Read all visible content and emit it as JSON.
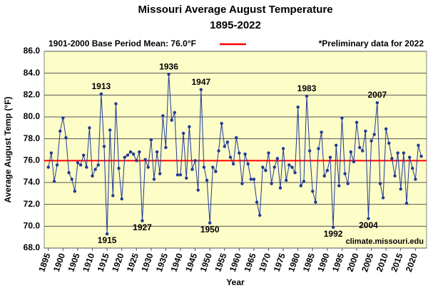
{
  "chart_data": {
    "type": "line",
    "title": "Missouri Average August Temperature",
    "subtitle": "1895-2022",
    "x_label": "Year",
    "y_label": "Average August Temp (°F)",
    "note": "*Preliminary data for 2022",
    "source": "climate.missouri.edu",
    "reference_line": {
      "label": "1901-2000 Base Period Mean: 76.0°F",
      "value": 76.0,
      "color": "#ff0000"
    },
    "x": [
      1895,
      1896,
      1897,
      1898,
      1899,
      1900,
      1901,
      1902,
      1903,
      1904,
      1905,
      1906,
      1907,
      1908,
      1909,
      1910,
      1911,
      1912,
      1913,
      1914,
      1915,
      1916,
      1917,
      1918,
      1919,
      1920,
      1921,
      1922,
      1923,
      1924,
      1925,
      1926,
      1927,
      1928,
      1929,
      1930,
      1931,
      1932,
      1933,
      1934,
      1935,
      1936,
      1937,
      1938,
      1939,
      1940,
      1941,
      1942,
      1943,
      1944,
      1945,
      1946,
      1947,
      1948,
      1949,
      1950,
      1951,
      1952,
      1953,
      1954,
      1955,
      1956,
      1957,
      1958,
      1959,
      1960,
      1961,
      1962,
      1963,
      1964,
      1965,
      1966,
      1967,
      1968,
      1969,
      1970,
      1971,
      1972,
      1973,
      1974,
      1975,
      1976,
      1977,
      1978,
      1979,
      1980,
      1981,
      1982,
      1983,
      1984,
      1985,
      1986,
      1987,
      1988,
      1989,
      1990,
      1991,
      1992,
      1993,
      1994,
      1995,
      1996,
      1997,
      1998,
      1999,
      2000,
      2001,
      2002,
      2003,
      2004,
      2005,
      2006,
      2007,
      2008,
      2009,
      2010,
      2011,
      2012,
      2013,
      2014,
      2015,
      2016,
      2017,
      2018,
      2019,
      2020,
      2021,
      2022
    ],
    "series": [
      {
        "name": "August temperature",
        "color": "#1f3a93",
        "values": [
          75.4,
          76.7,
          74.1,
          75.6,
          78.7,
          79.9,
          78.1,
          74.9,
          74.3,
          73.2,
          75.8,
          75.6,
          76.5,
          75.4,
          79.0,
          74.6,
          75.2,
          75.6,
          82.1,
          77.3,
          69.3,
          78.8,
          72.8,
          81.2,
          75.3,
          72.5,
          76.3,
          76.5,
          76.8,
          76.6,
          76.0,
          76.8,
          70.5,
          76.1,
          75.4,
          77.9,
          74.3,
          76.8,
          74.8,
          80.1,
          77.2,
          83.9,
          79.7,
          80.4,
          74.7,
          74.7,
          78.5,
          74.4,
          79.1,
          75.2,
          76.0,
          73.3,
          82.5,
          75.4,
          74.2,
          70.3,
          75.4,
          75.0,
          76.9,
          79.4,
          77.3,
          77.7,
          76.3,
          75.7,
          78.1,
          76.7,
          73.9,
          76.6,
          75.7,
          74.3,
          74.3,
          72.2,
          71.0,
          75.4,
          75.1,
          76.7,
          73.9,
          75.4,
          76.2,
          73.5,
          77.1,
          74.2,
          75.6,
          75.4,
          74.9,
          80.9,
          73.7,
          74.1,
          81.9,
          76.9,
          73.2,
          72.2,
          77.1,
          78.6,
          74.6,
          75.1,
          76.3,
          69.9,
          77.4,
          73.7,
          79.9,
          74.8,
          73.9,
          76.8,
          75.9,
          79.5,
          77.2,
          76.9,
          78.7,
          70.7,
          77.8,
          78.4,
          81.3,
          73.9,
          72.6,
          78.9,
          77.6,
          76.2,
          74.6,
          76.7,
          73.4,
          76.7,
          72.1,
          76.3,
          75.3,
          74.3,
          77.4,
          76.4
        ]
      }
    ],
    "annotations": [
      {
        "text": "1913",
        "x": 1913,
        "position": "above"
      },
      {
        "text": "1915",
        "x": 1915,
        "position": "below"
      },
      {
        "text": "1927",
        "x": 1927,
        "position": "below"
      },
      {
        "text": "1936",
        "x": 1936,
        "position": "above"
      },
      {
        "text": "1947",
        "x": 1947,
        "position": "above"
      },
      {
        "text": "1950",
        "x": 1950,
        "position": "below"
      },
      {
        "text": "1983",
        "x": 1983,
        "position": "above"
      },
      {
        "text": "1992",
        "x": 1992,
        "position": "below"
      },
      {
        "text": "2004",
        "x": 2004,
        "position": "below"
      },
      {
        "text": "2007",
        "x": 2007,
        "position": "above"
      }
    ],
    "xlim": [
      1893.6,
      2023.8
    ],
    "xticks": [
      1895,
      1900,
      1905,
      1910,
      1915,
      1920,
      1925,
      1930,
      1935,
      1940,
      1945,
      1950,
      1955,
      1960,
      1965,
      1970,
      1975,
      1980,
      1985,
      1990,
      1995,
      2000,
      2005,
      2010,
      2015,
      2020
    ],
    "ylim": [
      68,
      86
    ],
    "yticks": [
      {
        "value": 68,
        "label": "68.0"
      },
      {
        "value": 70,
        "label": "70.0"
      },
      {
        "value": 72,
        "label": "72.0"
      },
      {
        "value": 74,
        "label": "74.0"
      },
      {
        "value": 76,
        "label": "76.0"
      },
      {
        "value": 78,
        "label": "78.0"
      },
      {
        "value": 80,
        "label": "80.0"
      },
      {
        "value": 82,
        "label": "82.0"
      },
      {
        "value": 84,
        "label": "84.0"
      },
      {
        "value": 86,
        "label": "86.0"
      }
    ],
    "grid": true,
    "plot_background": "#fdfdc8"
  }
}
